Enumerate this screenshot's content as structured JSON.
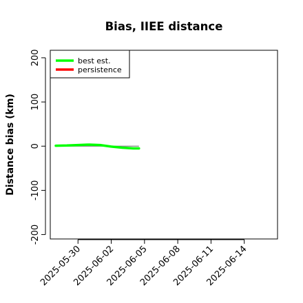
{
  "chart_data": {
    "type": "line",
    "title": "Bias, IIEE distance",
    "xlabel": "",
    "ylabel": "Distance bias (km)",
    "x_type": "date",
    "xlim": [
      "2025-05-27T12:00",
      "2025-06-17T00:00"
    ],
    "ylim": [
      -210,
      217
    ],
    "x_ticks": [
      "2025-05-30",
      "2025-06-02",
      "2025-06-05",
      "2025-06-08",
      "2025-06-11",
      "2025-06-14"
    ],
    "y_ticks": [
      -200,
      -100,
      0,
      100,
      200
    ],
    "grid": false,
    "legend_position": "top-left",
    "reference_line": {
      "y": 0,
      "x_start": "2025-05-28",
      "x_end": "2025-06-04T12:00",
      "color": "#808080"
    },
    "series": [
      {
        "name": "best est.",
        "color": "#00ff00",
        "x": [
          "2025-05-28",
          "2025-05-29",
          "2025-05-30",
          "2025-05-31",
          "2025-06-01",
          "2025-06-02",
          "2025-06-03",
          "2025-06-04",
          "2025-06-04T12:00"
        ],
        "y": [
          1,
          1.5,
          2.5,
          3.5,
          2.5,
          -1,
          -3.5,
          -5,
          -5
        ]
      },
      {
        "name": "persistence",
        "color": "#ff0000",
        "x": [],
        "y": []
      }
    ]
  }
}
